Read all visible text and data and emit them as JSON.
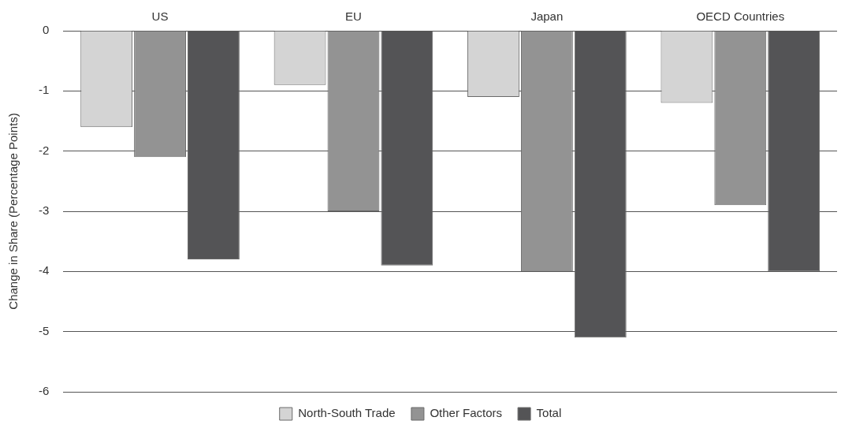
{
  "chart_data": {
    "type": "bar",
    "ylabel": "Change in Share (Percentage Points)",
    "categories": [
      "US",
      "EU",
      "Japan",
      "OECD Countries"
    ],
    "series": [
      {
        "name": "North-South Trade",
        "color": "#d4d4d4",
        "values": [
          -1.6,
          -0.9,
          -1.1,
          -1.2
        ]
      },
      {
        "name": "Other Factors",
        "color": "#939393",
        "values": [
          -2.1,
          -3.0,
          -4.0,
          -2.9
        ]
      },
      {
        "name": "Total",
        "color": "#545456",
        "values": [
          -3.8,
          -3.9,
          -5.1,
          -4.0
        ]
      }
    ],
    "ylim": [
      -6,
      0
    ],
    "yticks": [
      -6,
      -5,
      -4,
      -3,
      -2,
      -1,
      0
    ],
    "grid": "y",
    "legend": "bottom"
  }
}
